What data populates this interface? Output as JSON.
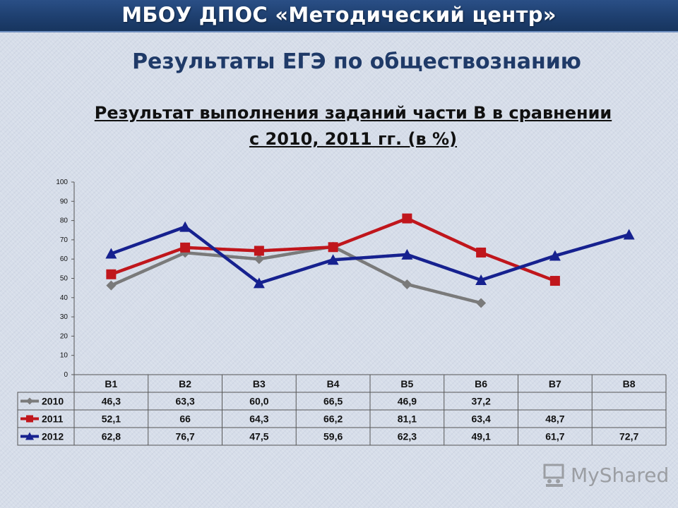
{
  "banner": {
    "title": "МБОУ ДПОС «Методический центр»"
  },
  "page": {
    "title": "Результаты  ЕГЭ по обществознанию",
    "subtitle_line1": "Результат выполнения заданий части В в сравнении",
    "subtitle_line2": "с 2010, 2011 гг. (в %)"
  },
  "watermark": {
    "text": "MyShared",
    "icon": "classroom-board-icon"
  },
  "chart_data": {
    "type": "line",
    "title": "",
    "categories": [
      "В1",
      "В2",
      "В3",
      "В4",
      "В5",
      "В6",
      "В7",
      "В8"
    ],
    "ylim": [
      0,
      100
    ],
    "yticks": [
      0,
      10,
      20,
      30,
      40,
      50,
      60,
      70,
      80,
      90,
      100
    ],
    "grid": false,
    "legend": "data-table-left",
    "series": [
      {
        "name": "2010",
        "color": "#7a7a7a",
        "marker": "diamond",
        "values": [
          46.3,
          63.3,
          60.0,
          66.5,
          46.9,
          37.2,
          null,
          null
        ],
        "labels": [
          "46,3",
          "63,3",
          "60,0",
          "66,5",
          "46,9",
          "37,2",
          "",
          ""
        ]
      },
      {
        "name": "2011",
        "color": "#c0161c",
        "marker": "square",
        "values": [
          52.1,
          66,
          64.3,
          66.2,
          81.1,
          63.4,
          48.7,
          null
        ],
        "labels": [
          "52,1",
          "66",
          "64,3",
          "66,2",
          "81,1",
          "63,4",
          "48,7",
          ""
        ]
      },
      {
        "name": "2012",
        "color": "#16218f",
        "marker": "triangle",
        "values": [
          62.8,
          76.7,
          47.5,
          59.6,
          62.3,
          49.1,
          61.7,
          72.7
        ],
        "labels": [
          "62,8",
          "76,7",
          "47,5",
          "59,6",
          "62,3",
          "49,1",
          "61,7",
          "72,7"
        ]
      }
    ]
  }
}
